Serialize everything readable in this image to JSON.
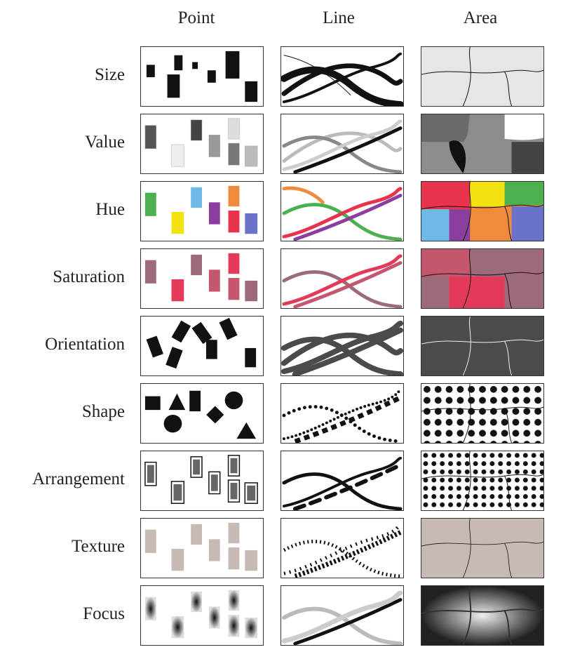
{
  "columns": [
    "Point",
    "Line",
    "Area"
  ],
  "rows": [
    {
      "label": "Size"
    },
    {
      "label": "Value"
    },
    {
      "label": "Hue"
    },
    {
      "label": "Saturation"
    },
    {
      "label": "Orientation"
    },
    {
      "label": "Shape"
    },
    {
      "label": "Arrangement"
    },
    {
      "label": "Texture"
    },
    {
      "label": "Focus"
    }
  ],
  "colors": {
    "ink": "#111111",
    "hue_green": "#4caf50",
    "hue_yellow": "#f2e20f",
    "hue_blue": "#6fb9e6",
    "hue_red": "#e8334d",
    "hue_purple": "#8a3f9e",
    "hue_orange": "#f08a3c",
    "hue_indigo": "#6a73c9",
    "sat_high": "#e23a58",
    "sat_mid": "#c4566e",
    "sat_low": "#9c6a78",
    "texture_tan": "#c7b9b4",
    "orientation_gray": "#4b4b4b"
  }
}
